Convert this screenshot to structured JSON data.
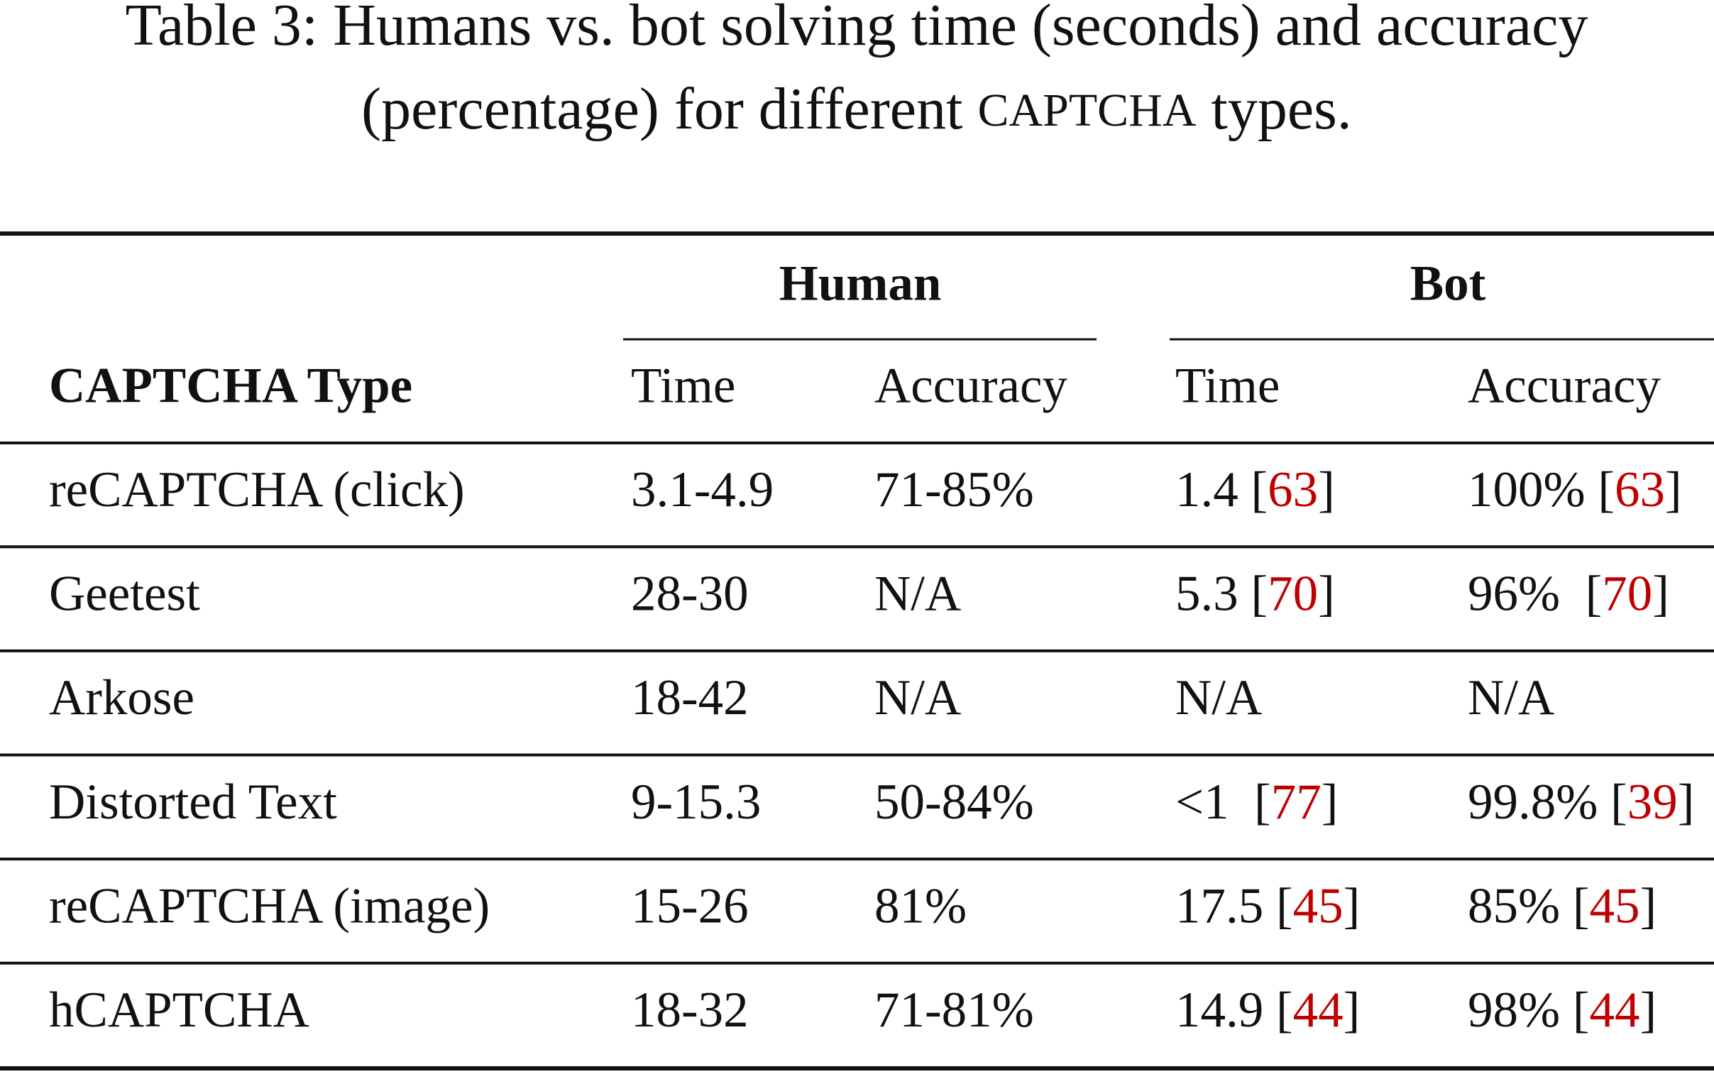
{
  "caption": {
    "lines": [
      [
        "Table 3: Humans vs. bot solving time (seconds) and accuracy"
      ],
      [
        "(percentage) for different ",
        "CAPTCHA",
        " types."
      ]
    ]
  },
  "table": {
    "group_headers": [
      "Human",
      "Bot"
    ],
    "columns": [
      "CAPTCHA Type",
      "Time",
      "Accuracy",
      "Time",
      "Accuracy"
    ],
    "rows": [
      [
        [
          "reCAPTCHA (click)"
        ],
        [
          "3.1-4.9"
        ],
        [
          "71-85%"
        ],
        [
          "1.4 [",
          "63",
          "]"
        ],
        [
          "100% [",
          "63",
          "]"
        ]
      ],
      [
        [
          "Geetest"
        ],
        [
          "28-30"
        ],
        [
          "N/A"
        ],
        [
          "5.3 [",
          "70",
          "]"
        ],
        [
          "96%  [",
          "70",
          "]"
        ]
      ],
      [
        [
          "Arkose"
        ],
        [
          "18-42"
        ],
        [
          "N/A"
        ],
        [
          "N/A"
        ],
        [
          "N/A"
        ]
      ],
      [
        [
          "Distorted Text"
        ],
        [
          "9-15.3"
        ],
        [
          "50-84%"
        ],
        [
          "<1  [",
          "77",
          "]"
        ],
        [
          "99.8% [",
          "39",
          "]"
        ]
      ],
      [
        [
          "reCAPTCHA (image)"
        ],
        [
          "15-26"
        ],
        [
          "81%"
        ],
        [
          "17.5 [",
          "45",
          "]"
        ],
        [
          "85% [",
          "45",
          "]"
        ]
      ],
      [
        [
          "hCAPTCHA"
        ],
        [
          "18-32"
        ],
        [
          "71-81%"
        ],
        [
          "14.9 [",
          "44",
          "]"
        ],
        [
          "98% [",
          "44",
          "]"
        ]
      ]
    ]
  }
}
